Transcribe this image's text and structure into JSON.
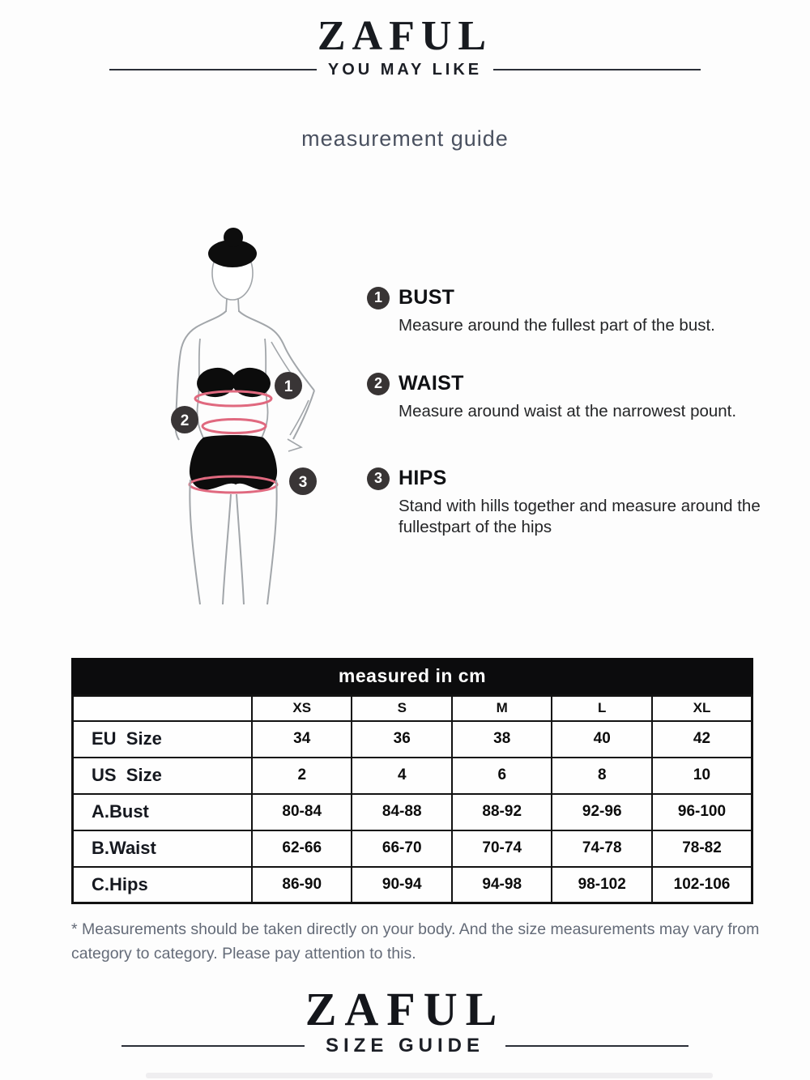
{
  "header": {
    "brand": "ZAFUL",
    "tagline": "YOU MAY LIKE",
    "title": "measurement guide"
  },
  "figure": {
    "markers": [
      "1",
      "2",
      "3"
    ],
    "marker_bg": "#393536",
    "tape_color": "#e0697f",
    "outline_color": "#a2a6aa",
    "garment_color": "#0c0c0c"
  },
  "instructions": [
    {
      "number": "1",
      "title": "BUST",
      "description": "Measure around the fullest part of the bust."
    },
    {
      "number": "2",
      "title": "WAIST",
      "description": "Measure around waist at the narrowest pount."
    },
    {
      "number": "3",
      "title": "HIPS",
      "description": "Stand with hills together and measure around the fullestpart of the hips"
    }
  ],
  "size_table": {
    "title": "measured in cm",
    "columns": [
      "XS",
      "S",
      "M",
      "L",
      "XL"
    ],
    "rows": [
      {
        "label": "EU  Size",
        "values": [
          "34",
          "36",
          "38",
          "40",
          "42"
        ]
      },
      {
        "label": "US  Size",
        "values": [
          "2",
          "4",
          "6",
          "8",
          "10"
        ]
      },
      {
        "label": "A.Bust",
        "values": [
          "80-84",
          "84-88",
          "88-92",
          "92-96",
          "96-100"
        ]
      },
      {
        "label": "B.Waist",
        "values": [
          "62-66",
          "66-70",
          "70-74",
          "74-78",
          "78-82"
        ]
      },
      {
        "label": "C.Hips",
        "values": [
          "86-90",
          "90-94",
          "94-98",
          "98-102",
          "102-106"
        ]
      }
    ]
  },
  "footnote": "* Measurements should be taken directly on your body. And the size measurements may vary from category to category. Please pay attention to this.",
  "footer": {
    "brand": "ZAFUL",
    "tagline": "SIZE GUIDE"
  }
}
